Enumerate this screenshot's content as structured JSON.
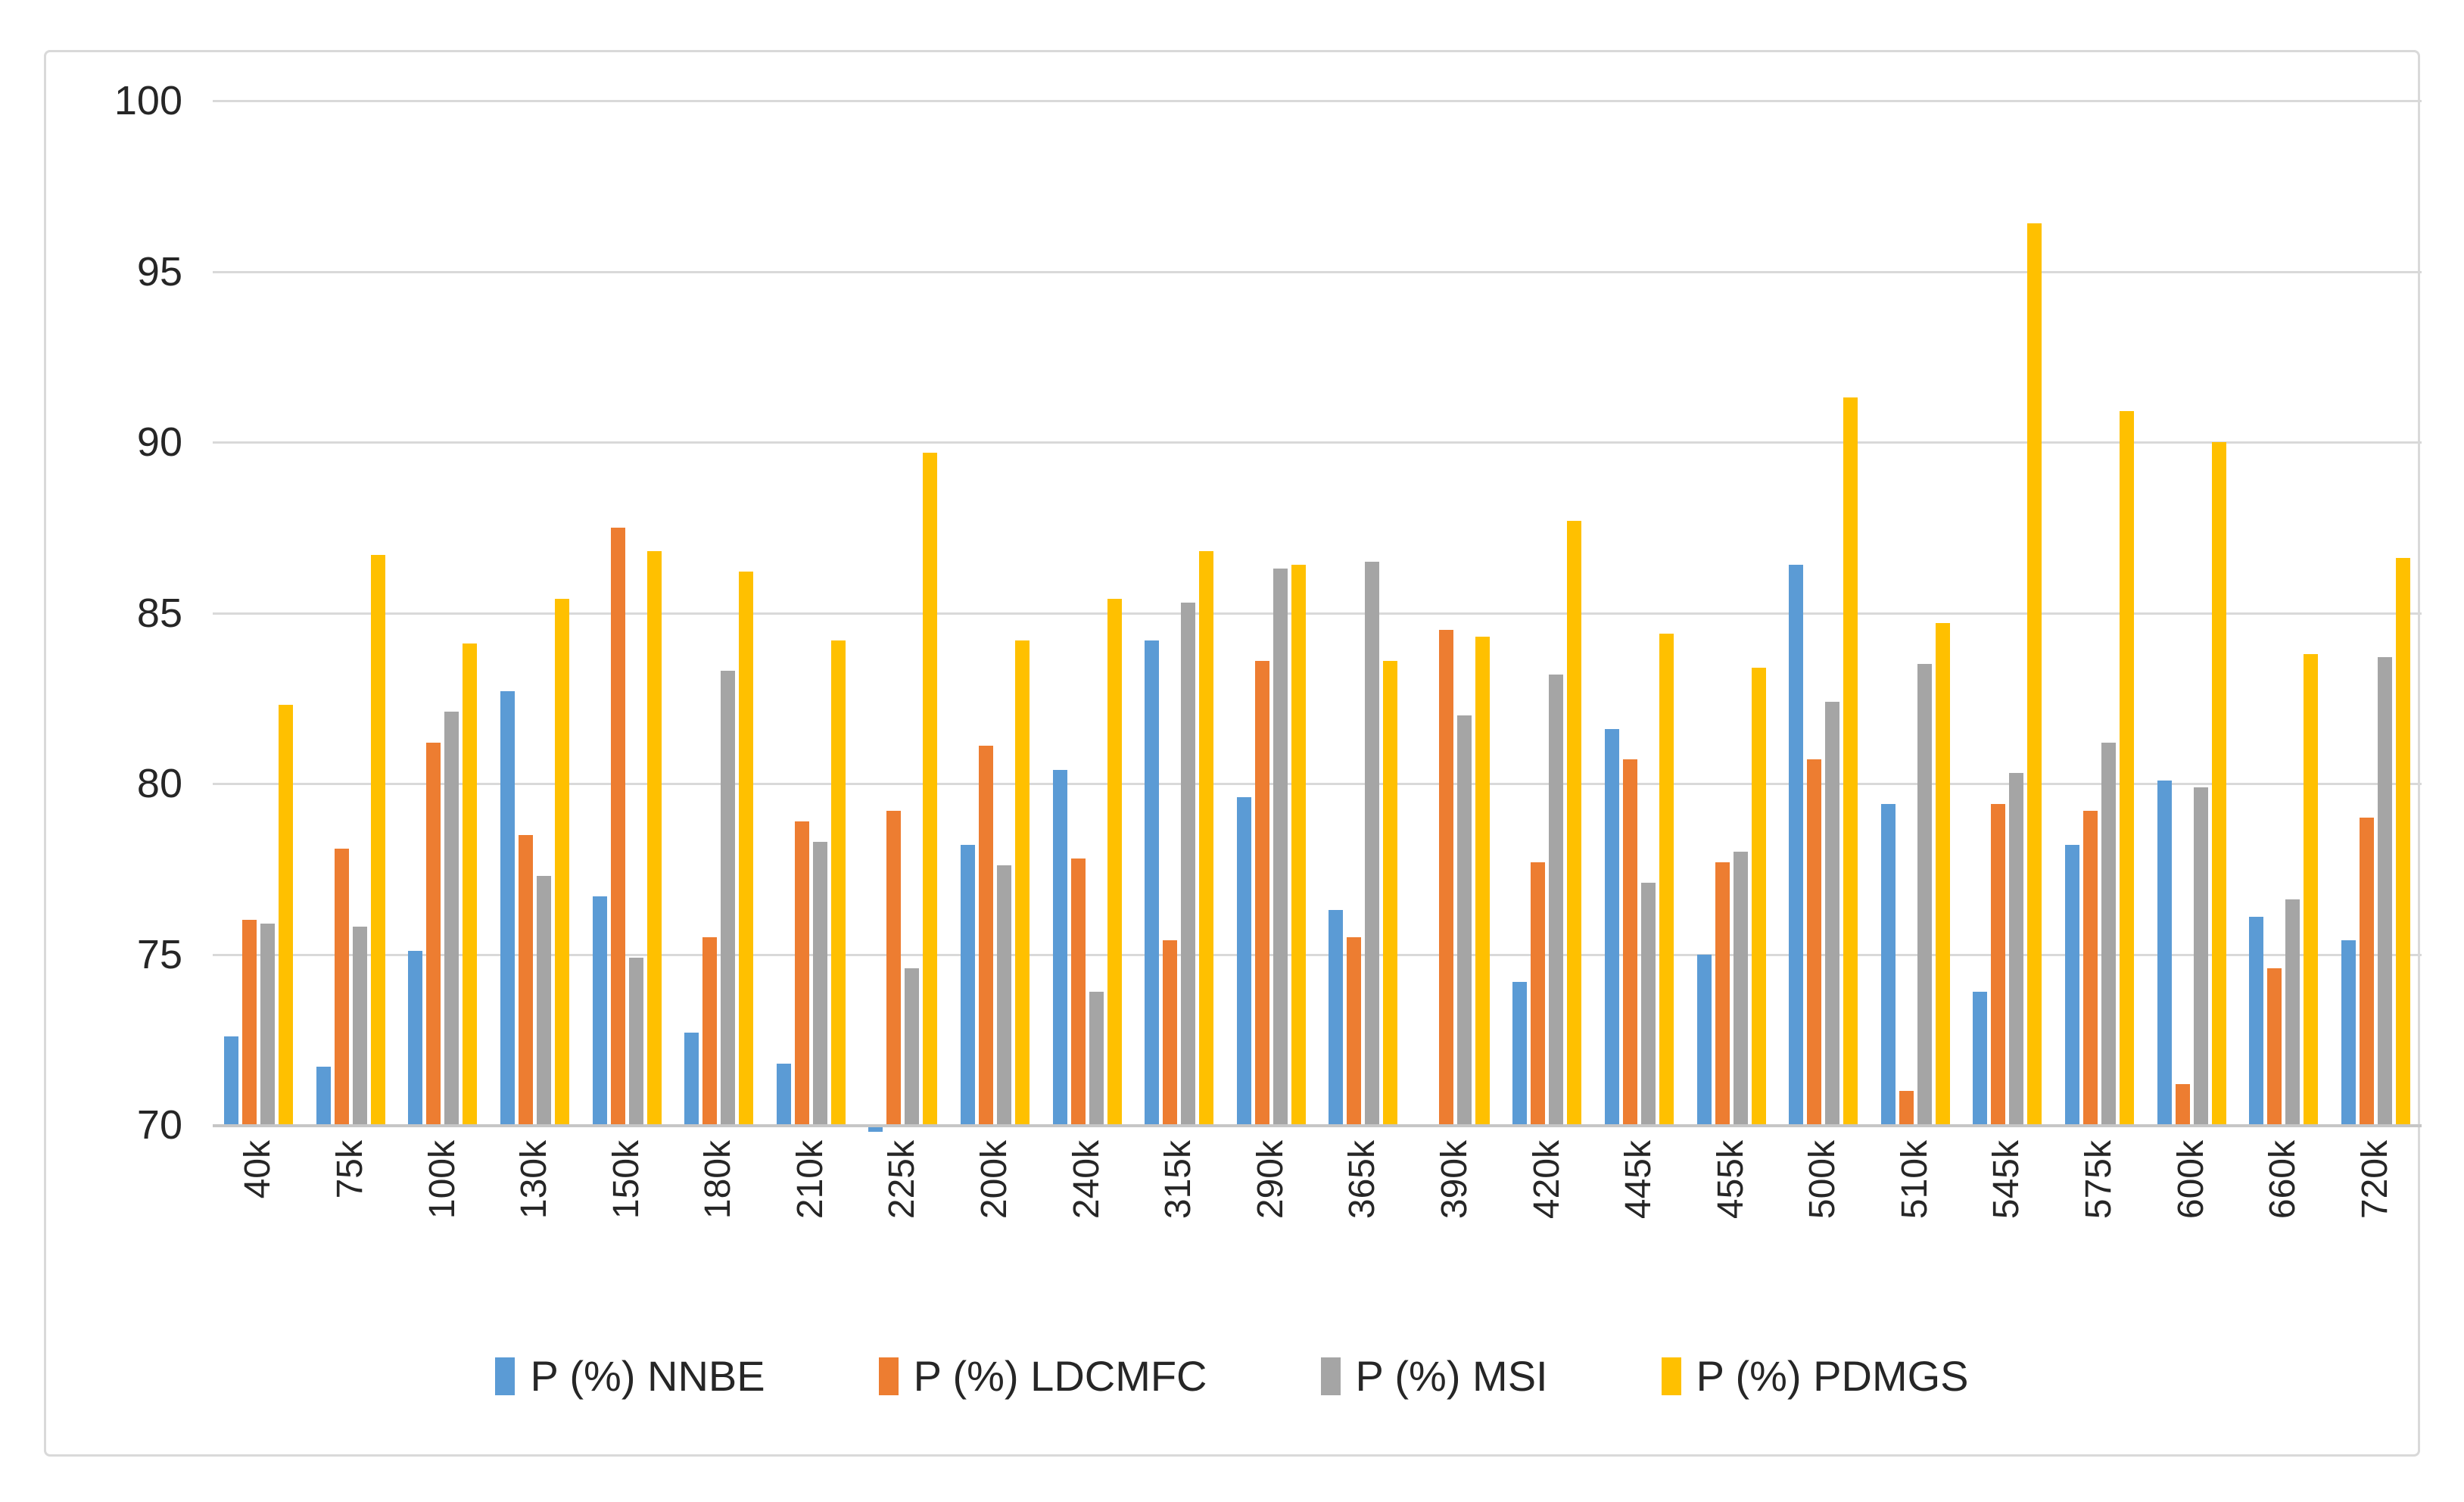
{
  "chart_data": {
    "type": "bar",
    "title": "",
    "categories": [
      "40k",
      "75k",
      "100k",
      "130k",
      "150k",
      "180k",
      "210k",
      "225k",
      "200k",
      "240k",
      "315k",
      "290k",
      "365k",
      "390k",
      "420k",
      "445k",
      "455k",
      "500k",
      "510k",
      "545k",
      "575k",
      "600k",
      "660k",
      "720k"
    ],
    "series": [
      {
        "name": "P (%) NNBE",
        "color": "#5B9BD5",
        "values": [
          72.6,
          71.7,
          75.1,
          82.7,
          76.7,
          72.7,
          71.8,
          69.8,
          78.2,
          80.4,
          84.2,
          79.6,
          76.3,
          70.0,
          74.2,
          81.6,
          75.0,
          86.4,
          79.4,
          73.9,
          78.2,
          80.1,
          76.1,
          75.4
        ]
      },
      {
        "name": "P (%) LDCMFC",
        "color": "#ED7D31",
        "values": [
          76.0,
          78.1,
          81.2,
          78.5,
          87.5,
          75.5,
          78.9,
          79.2,
          81.1,
          77.8,
          75.4,
          83.6,
          75.5,
          84.5,
          77.7,
          80.7,
          77.7,
          80.7,
          71.0,
          79.4,
          79.2,
          71.2,
          74.6,
          79.0
        ]
      },
      {
        "name": "P (%) MSI",
        "color": "#A5A5A5",
        "values": [
          75.9,
          75.8,
          82.1,
          77.3,
          74.9,
          83.3,
          78.3,
          74.6,
          77.6,
          73.9,
          85.3,
          86.3,
          86.5,
          82.0,
          83.2,
          77.1,
          78.0,
          82.4,
          83.5,
          80.3,
          81.2,
          79.9,
          76.6,
          83.7
        ]
      },
      {
        "name": "P (%) PDMGS",
        "color": "#FFC000",
        "values": [
          82.3,
          86.7,
          84.1,
          85.4,
          86.8,
          86.2,
          84.2,
          89.7,
          84.2,
          85.4,
          86.8,
          86.4,
          83.6,
          84.3,
          87.7,
          84.4,
          83.4,
          91.3,
          84.7,
          96.4,
          90.9,
          90.0,
          83.8,
          86.6
        ]
      }
    ],
    "ylim": [
      70,
      100
    ],
    "yticks": [
      100,
      95,
      90,
      85,
      80,
      75,
      70
    ],
    "grid": true,
    "legend_position": "bottom",
    "gridline_color": "#D9D9D9",
    "axis_line_color": "#C6C6C6",
    "text_color": "#262626"
  },
  "frame": {
    "border_color": "#D9D9D9",
    "background": "#FFFFFF"
  }
}
